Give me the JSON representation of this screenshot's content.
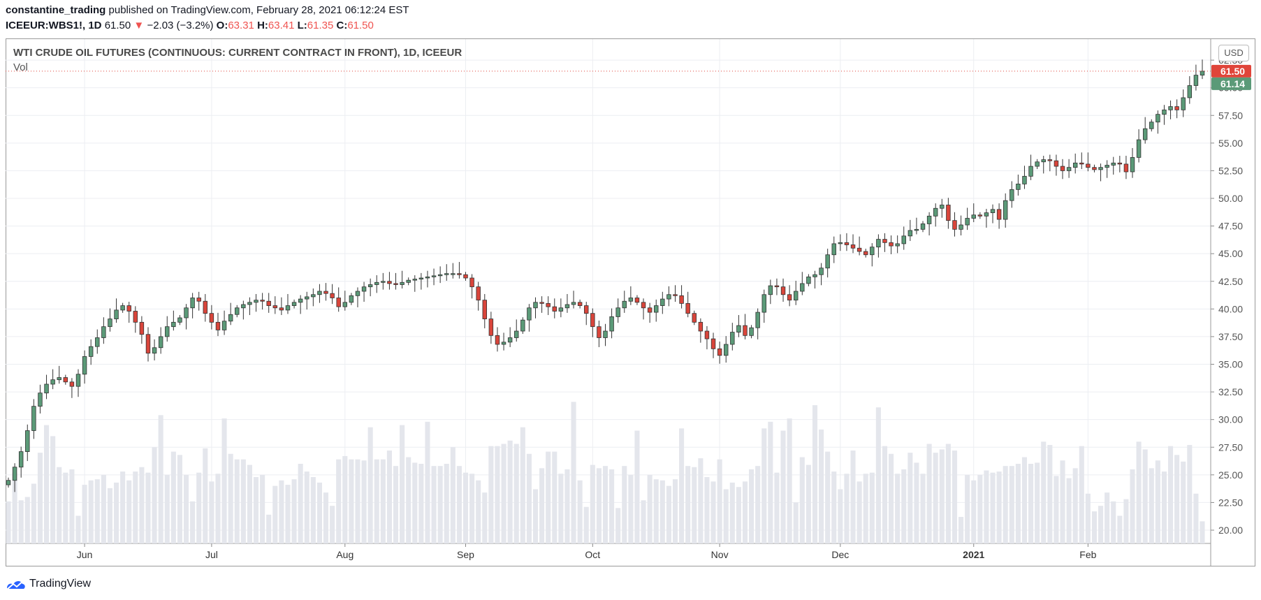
{
  "header": {
    "publisher": "constantine_trading",
    "published_text": "published on TradingView.com, February 28, 2021 06:12:24 EST",
    "symbol": "ICEEUR:WBS1!, 1D",
    "last": "61.50",
    "change": "−2.03 (−3.2%)",
    "o_label": "O:",
    "o_val": "63.31",
    "h_label": "H:",
    "h_val": "63.41",
    "l_label": "L:",
    "l_val": "61.35",
    "c_label": "C:",
    "c_val": "61.50"
  },
  "legend": {
    "title": "WTI CRUDE OIL FUTURES (CONTINUOUS: CURRENT CONTRACT IN FRONT), 1D, ICEEUR",
    "vol": "Vol"
  },
  "currency": "USD",
  "footer": {
    "brand": "TradingView"
  },
  "colors": {
    "up": "#5b9a78",
    "down": "#d9453b",
    "vol": "#e4e6ec",
    "grid": "#eceef2",
    "last_red": "#e0453a",
    "last_green": "#5b9a78"
  },
  "chart_data": {
    "type": "candlestick",
    "title": "WTI CRUDE OIL FUTURES (CONTINUOUS: CURRENT CONTRACT IN FRONT), 1D, ICEEUR",
    "ylim": [
      18.8,
      64.4
    ],
    "y_ticks": [
      "62.50",
      "60.00",
      "57.50",
      "55.00",
      "52.50",
      "50.00",
      "47.50",
      "45.00",
      "42.50",
      "40.00",
      "37.50",
      "35.00",
      "32.50",
      "30.00",
      "27.50",
      "25.00",
      "22.50",
      "20.00"
    ],
    "x_ticks": [
      "Jun",
      "Jul",
      "Aug",
      "Sep",
      "Oct",
      "Nov",
      "Dec",
      "2021",
      "Feb"
    ],
    "x_tick_index": [
      12,
      32,
      53,
      72,
      92,
      112,
      131,
      152,
      170
    ],
    "price_labels": {
      "last": "61.50",
      "alt": "61.14"
    },
    "volume_scale_note": "volume drawn on price axis scale (20–31)",
    "close_path": [
      24.5,
      25.7,
      27.1,
      29.0,
      31.2,
      32.4,
      33.2,
      33.6,
      33.8,
      33.4,
      33.0,
      34.1,
      35.7,
      36.6,
      37.4,
      38.4,
      39.1,
      39.9,
      40.3,
      39.8,
      38.8,
      37.7,
      36.0,
      36.5,
      37.5,
      38.4,
      38.8,
      39.2,
      40.1,
      41.0,
      40.7,
      39.6,
      38.8,
      38.1,
      38.9,
      39.5,
      40.1,
      40.4,
      40.6,
      40.8,
      40.7,
      40.3,
      40.1,
      39.9,
      40.3,
      40.6,
      40.9,
      41.1,
      41.3,
      41.6,
      41.4,
      41.0,
      40.2,
      40.6,
      41.2,
      41.6,
      42.0,
      42.2,
      42.4,
      42.5,
      42.3,
      42.2,
      42.4,
      42.6,
      42.7,
      42.8,
      42.9,
      43.0,
      43.1,
      43.2,
      43.2,
      43.1,
      42.8,
      42.0,
      40.8,
      39.1,
      37.6,
      36.8,
      37.0,
      37.4,
      38.0,
      39.0,
      40.1,
      40.6,
      40.5,
      40.2,
      39.8,
      40.1,
      40.4,
      40.6,
      40.3,
      39.6,
      38.4,
      37.4,
      38.0,
      39.3,
      40.1,
      40.7,
      41.0,
      40.6,
      40.1,
      39.7,
      40.3,
      40.9,
      41.3,
      41.2,
      40.5,
      39.6,
      38.8,
      38.0,
      37.3,
      36.4,
      35.8,
      36.8,
      37.9,
      38.5,
      37.6,
      38.3,
      39.7,
      41.3,
      42.1,
      42.0,
      41.3,
      40.8,
      41.6,
      42.3,
      42.9,
      43.1,
      43.7,
      44.9,
      45.9,
      46.0,
      45.8,
      45.5,
      45.2,
      44.9,
      45.6,
      46.3,
      46.0,
      45.7,
      45.9,
      46.6,
      47.1,
      47.2,
      47.7,
      48.4,
      49.1,
      49.4,
      48.0,
      47.2,
      47.6,
      48.2,
      48.5,
      48.4,
      48.7,
      49.0,
      48.1,
      49.8,
      50.8,
      51.3,
      52.0,
      52.9,
      53.3,
      53.5,
      53.4,
      52.9,
      52.5,
      52.8,
      53.2,
      53.1,
      52.8,
      52.6,
      52.8,
      53.0,
      53.2,
      53.1,
      52.4,
      53.7,
      55.3,
      56.3,
      56.9,
      57.6,
      58.0,
      58.3,
      58.0,
      59.1,
      60.2,
      61.14,
      61.5
    ],
    "volume_path": [
      22.6,
      25.2,
      22.7,
      23.0,
      24.2,
      27.0,
      29.5,
      28.5,
      25.7,
      25.2,
      25.5,
      21.3,
      24.1,
      24.5,
      24.6,
      25.0,
      23.8,
      24.3,
      25.3,
      24.5,
      25.3,
      25.7,
      25.2,
      27.5,
      30.4,
      25.0,
      27.1,
      26.8,
      25.0,
      22.6,
      25.2,
      27.4,
      24.4,
      25.1,
      30.1,
      26.9,
      26.4,
      26.4,
      25.9,
      24.8,
      25.0,
      21.4,
      24.0,
      24.5,
      24.1,
      24.6,
      26.0,
      25.3,
      24.8,
      24.3,
      23.4,
      22.2,
      26.4,
      26.7,
      26.4,
      26.4,
      26.3,
      29.3,
      26.4,
      26.4,
      27.2,
      25.8,
      29.5,
      26.6,
      26.1,
      26.0,
      29.8,
      25.8,
      25.8,
      26.0,
      27.5,
      25.8,
      25.2,
      25.1,
      24.5,
      23.4,
      27.6,
      27.6,
      27.8,
      28.1,
      27.8,
      29.3,
      26.9,
      23.7,
      25.6,
      27.1,
      27.1,
      25.1,
      25.5,
      31.6,
      24.5,
      22.1,
      25.9,
      25.6,
      25.8,
      25.5,
      22.0,
      25.8,
      25.0,
      29.0,
      22.7,
      25.0,
      24.6,
      24.5,
      24.0,
      24.6,
      29.2,
      25.8,
      25.7,
      26.5,
      24.8,
      24.4,
      26.4,
      23.7,
      24.3,
      23.9,
      24.4,
      25.5,
      25.8,
      29.2,
      29.8,
      25.2,
      29.0,
      30.1,
      22.5,
      26.6,
      25.9,
      31.3,
      29.1,
      27.1,
      25.3,
      23.7,
      25.1,
      27.2,
      24.4,
      25.1,
      25.2,
      31.1,
      27.6,
      26.9,
      25.1,
      25.5,
      27.0,
      26.1,
      25.1,
      27.8,
      27.0,
      27.3,
      27.8,
      27.2,
      21.2,
      25.0,
      24.5,
      25.0,
      25.4,
      25.2,
      25.3,
      25.8,
      25.8,
      26.0,
      26.6,
      26.0,
      26.1,
      28.0,
      27.7,
      24.9,
      26.3,
      24.7,
      25.6,
      27.6,
      23.3,
      21.7,
      22.2,
      23.4,
      22.6,
      21.3,
      22.8,
      25.5,
      28.0,
      27.3,
      25.6,
      26.3,
      25.3,
      27.6,
      26.8,
      26.2,
      27.7,
      23.3,
      20.8,
      22.7,
      30.3,
      31.0,
      25.9,
      29.2,
      27.4,
      26.2,
      25.6,
      25.8,
      29.0,
      26.5,
      25.2,
      26.9,
      25.8,
      25.6,
      25.2,
      26.3,
      25.9,
      25.4,
      25.3,
      25.0,
      24.6,
      26.6,
      25.1,
      25.3,
      25.1,
      24.6,
      27.8,
      25.5
    ]
  }
}
